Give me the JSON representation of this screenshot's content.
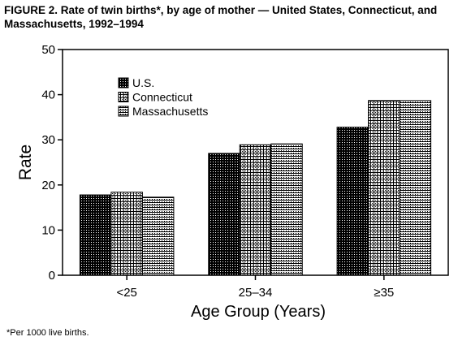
{
  "figure": {
    "title_line1": "FIGURE 2. Rate of twin births*, by age of mother — United States, Connecticut, and",
    "title_line2": "Massachusetts, 1992–1994",
    "footnote": "*Per 1000 live births."
  },
  "chart_data": {
    "type": "bar",
    "title": "FIGURE 2. Rate of twin births*, by age of mother — United States, Connecticut, and Massachusetts, 1992–1994",
    "xlabel": "Age Group (Years)",
    "ylabel": "Rate",
    "ylim": [
      0,
      50
    ],
    "yticks": [
      0,
      10,
      20,
      30,
      40,
      50
    ],
    "categories": [
      "<25",
      "25–34",
      "≥35"
    ],
    "series": [
      {
        "name": "U.S.",
        "values": [
          17.8,
          27.0,
          32.8
        ],
        "pattern": "dark-crosshatch"
      },
      {
        "name": "Connecticut",
        "values": [
          18.4,
          28.9,
          38.7
        ],
        "pattern": "medium-crosshatch"
      },
      {
        "name": "Massachusetts",
        "values": [
          17.3,
          29.1,
          38.7
        ],
        "pattern": "horizontal-lines"
      }
    ],
    "legend_position": "top-left",
    "grid": false
  }
}
